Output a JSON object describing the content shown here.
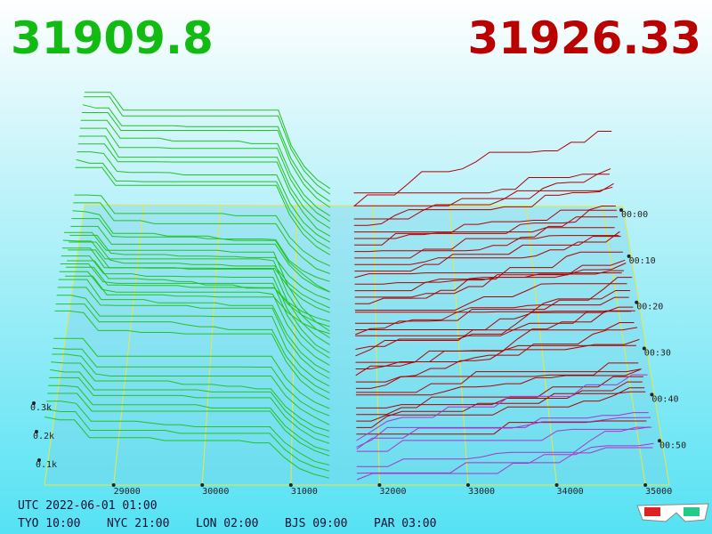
{
  "header": {
    "bid": "31909.8",
    "ask": "31926.33"
  },
  "axes": {
    "price_ticks": [
      "29000",
      "30000",
      "31000",
      "32000",
      "33000",
      "34000",
      "35000"
    ],
    "depth_ticks": [
      "0.1k",
      "0.2k",
      "0.3k"
    ],
    "time_ticks": [
      "00:00",
      "00:10",
      "00:20",
      "00:30",
      "00:40",
      "00:50"
    ]
  },
  "footer": {
    "utc": "UTC 2022-06-01 01:00",
    "zones": [
      "TYO 10:00",
      "NYC 21:00",
      "LON 02:00",
      "BJS 09:00",
      "PAR 03:00"
    ]
  }
}
